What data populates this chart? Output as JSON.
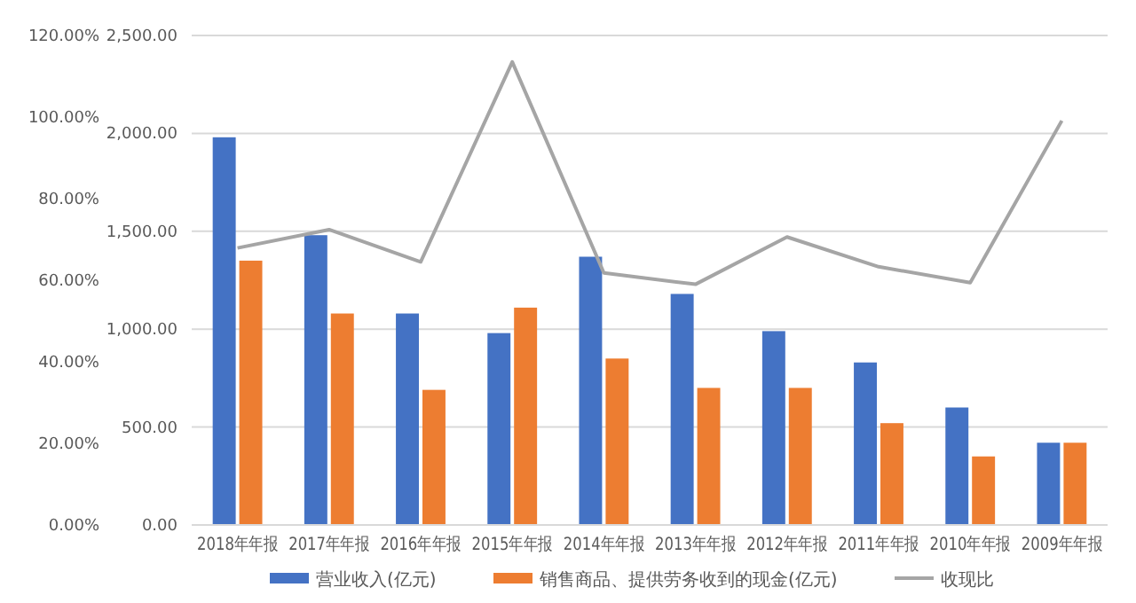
{
  "chart_data": {
    "type": "bar",
    "categories": [
      "2018年年报",
      "2017年年报",
      "2016年年报",
      "2015年年报",
      "2014年年报",
      "2013年年报",
      "2012年年报",
      "2011年年报",
      "2010年年报",
      "2009年年报"
    ],
    "series": [
      {
        "name": "营业收入(亿元)",
        "color": "#4472c4",
        "values": [
          1980,
          1480,
          1080,
          980,
          1370,
          1180,
          990,
          830,
          600,
          420
        ]
      },
      {
        "name": "销售商品、提供劳务收到的现金(亿元)",
        "color": "#ed7d31",
        "values": [
          1350,
          1080,
          690,
          1110,
          850,
          700,
          700,
          520,
          350,
          420
        ]
      },
      {
        "name": "收现比",
        "type": "line",
        "axis": "y2",
        "color": "#a5a5a5",
        "values": [
          67.9,
          72.4,
          64.5,
          113.5,
          61.8,
          59.0,
          70.6,
          63.3,
          59.4,
          99.1
        ]
      }
    ],
    "ylim": [
      0,
      2500
    ],
    "yticks": [
      {
        "value": 0,
        "label": "0.00"
      },
      {
        "value": 500,
        "label": "500.00"
      },
      {
        "value": 1000,
        "label": "1,000.00"
      },
      {
        "value": 1500,
        "label": "1,500.00"
      },
      {
        "value": 2000,
        "label": "2,000.00"
      },
      {
        "value": 2500,
        "label": "2,500.00"
      }
    ],
    "y2lim": [
      0,
      120
    ],
    "y2ticks": [
      {
        "value": 0,
        "label": "0.00%"
      },
      {
        "value": 20,
        "label": "20.00%"
      },
      {
        "value": 40,
        "label": "40.00%"
      },
      {
        "value": 60,
        "label": "60.00%"
      },
      {
        "value": 80,
        "label": "80.00%"
      },
      {
        "value": 100,
        "label": "100.00%"
      },
      {
        "value": 120,
        "label": "120.00%"
      }
    ],
    "grid": "y",
    "legend": "bottom",
    "marker": "none",
    "line_style": "solid"
  }
}
